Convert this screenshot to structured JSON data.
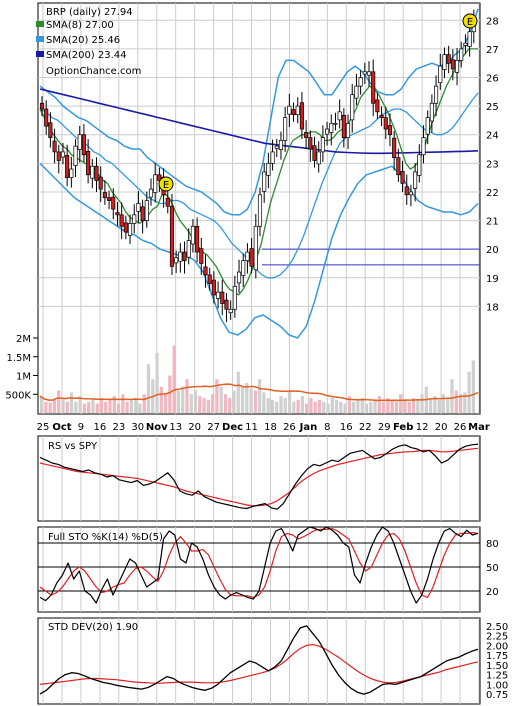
{
  "chart_data": [
    {
      "type": "candlestick",
      "panel": "price",
      "title": "BRP (daily) 27.94",
      "watermark": "OptionChance.com",
      "legend": [
        {
          "label": "SMA(8) 27.00",
          "color": "#2e8b2e"
        },
        {
          "label": "SMA(20) 25.46",
          "color": "#3399dd"
        },
        {
          "label": "SMA(200) 23.44",
          "color": "#1a1aa6"
        }
      ],
      "legend_placement": "top-left",
      "ylim": [
        17,
        28.5
      ],
      "y_ticks": [
        "18",
        "19",
        "20",
        "21",
        "22",
        "23",
        "24",
        "25",
        "26",
        "27",
        "28"
      ],
      "x_ticks": [
        "25",
        "Oct",
        "9",
        "16",
        "23",
        "30",
        "Nov",
        "13",
        "20",
        "27",
        "Dec",
        "11",
        "18",
        "26",
        "Jan",
        "8",
        "16",
        "22",
        "29",
        "Feb",
        "12",
        "20",
        "26",
        "Mar"
      ],
      "x_ticks_bold": [
        "Oct",
        "Nov",
        "Dec",
        "Jan",
        "Feb",
        "Mar"
      ],
      "close": [
        24.9,
        24.3,
        23.9,
        23.4,
        23.1,
        23.4,
        22.5,
        22.8,
        23.6,
        24.0,
        23.3,
        22.6,
        22.9,
        22.4,
        22.1,
        21.8,
        21.7,
        21.4,
        21.2,
        20.8,
        20.6,
        20.9,
        21.2,
        21.6,
        21.0,
        21.7,
        22.1,
        22.6,
        22.4,
        21.9,
        21.5,
        19.4,
        19.7,
        19.9,
        19.6,
        20.3,
        20.8,
        19.9,
        19.5,
        19.1,
        18.8,
        18.4,
        18.5,
        18.1,
        17.9,
        17.9,
        18.7,
        19.2,
        19.6,
        19.9,
        19.4,
        20.8,
        21.9,
        22.7,
        23.0,
        23.4,
        23.6,
        23.8,
        24.6,
        25.0,
        24.7,
        25.0,
        24.2,
        23.9,
        23.5,
        23.1,
        23.4,
        23.9,
        24.2,
        24.4,
        24.4,
        24.8,
        23.9,
        24.4,
        25.4,
        25.7,
        26.0,
        26.2,
        26.2,
        25.1,
        24.8,
        24.6,
        24.2,
        24.0,
        23.2,
        22.6,
        22.3,
        21.9,
        22.0,
        22.7,
        23.3,
        23.9,
        24.6,
        25.1,
        25.7,
        26.4,
        26.8,
        26.5,
        26.3,
        26.6,
        27.0,
        27.2,
        27.6,
        27.94
      ],
      "sma8": [
        24.9,
        24.6,
        24.3,
        24.0,
        23.8,
        23.6,
        23.5,
        23.3,
        23.2,
        23.1,
        23.0,
        22.9,
        22.8,
        22.6,
        22.4,
        22.3,
        22.0,
        21.8,
        21.6,
        21.3,
        21.1,
        21.0,
        20.9,
        21.0,
        21.2,
        21.4,
        21.5,
        21.9,
        21.9,
        21.7,
        21.3,
        21.0,
        20.8,
        20.6,
        20.3,
        20.1,
        19.9,
        19.8,
        19.6,
        19.4,
        19.1,
        18.8,
        18.6,
        18.5,
        18.4,
        18.6,
        18.9,
        19.3,
        19.7,
        20.2,
        20.9,
        21.6,
        22.1,
        22.6,
        23.1,
        23.5,
        23.8,
        23.9,
        24.0,
        24.0,
        24.1,
        24.1,
        24.0,
        23.8,
        23.8,
        23.9,
        24.1,
        24.2,
        24.3,
        24.6,
        24.9,
        25.3,
        25.5,
        25.7,
        25.6,
        25.4,
        25.1,
        24.8,
        24.4,
        24.0,
        23.5,
        23.0,
        22.8,
        22.9,
        23.1,
        23.5,
        24.0,
        24.5,
        24.9,
        25.3,
        25.7,
        26.0,
        26.3,
        26.6,
        26.8,
        27.0,
        27.0,
        27.0
      ],
      "sma20": [
        24.9,
        24.8,
        24.6,
        24.5,
        24.3,
        24.1,
        23.9,
        23.8,
        23.6,
        23.4,
        23.3,
        23.1,
        23.0,
        22.8,
        22.6,
        22.4,
        22.2,
        22.0,
        21.8,
        21.7,
        21.6,
        21.6,
        21.7,
        21.7,
        21.6,
        21.4,
        21.3,
        21.2,
        21.1,
        21.0,
        20.8,
        20.5,
        20.2,
        20.0,
        19.8,
        19.5,
        19.3,
        19.1,
        19.0,
        19.0,
        19.1,
        19.3,
        19.6,
        20.0,
        20.5,
        21.1,
        21.7,
        22.3,
        22.8,
        23.3,
        23.7,
        23.9,
        24.0,
        24.1,
        24.2,
        24.3,
        24.5,
        24.7,
        24.8,
        24.9,
        24.9,
        24.8,
        24.6,
        24.4,
        24.2,
        24.1,
        24.0,
        24.0,
        24.1,
        24.3,
        24.6,
        24.9,
        25.2,
        25.46
      ],
      "sma200": [
        25.6,
        25.5,
        25.4,
        25.3,
        25.2,
        25.1,
        25.0,
        24.9,
        24.8,
        24.7,
        24.6,
        24.5,
        24.4,
        24.3,
        24.2,
        24.1,
        24.0,
        23.9,
        23.8,
        23.7,
        23.65,
        23.6,
        23.55,
        23.5,
        23.45,
        23.4,
        23.38,
        23.36,
        23.35,
        23.35,
        23.36,
        23.37,
        23.38,
        23.39,
        23.4,
        23.41,
        23.42,
        23.44
      ],
      "bb_upper": [
        25.7,
        25.5,
        25.3,
        25.0,
        24.8,
        24.6,
        24.5,
        24.3,
        24.1,
        23.9,
        23.8,
        23.6,
        23.5,
        23.5,
        23.2,
        23.0,
        22.8,
        22.6,
        22.4,
        22.2,
        22.1,
        22.0,
        21.8,
        21.6,
        21.3,
        21.2,
        21.2,
        21.4,
        22.0,
        23.0,
        24.5,
        26.0,
        26.6,
        26.6,
        26.4,
        26.2,
        25.8,
        25.4,
        25.4,
        25.8,
        26.2,
        26.4,
        26.2,
        25.8,
        25.5,
        25.4,
        25.4,
        25.6,
        26.0,
        26.3,
        26.4,
        26.5,
        26.4,
        26.5,
        26.8,
        27.0,
        27.6,
        28.4
      ],
      "bb_lower": [
        23.0,
        22.7,
        22.4,
        22.1,
        21.8,
        21.6,
        21.4,
        21.2,
        21.0,
        20.8,
        20.6,
        20.5,
        20.3,
        20.2,
        20.0,
        19.9,
        19.8,
        19.8,
        19.6,
        19.2,
        18.4,
        17.6,
        17.1,
        17.0,
        17.2,
        17.6,
        17.7,
        17.5,
        17.3,
        17.0,
        16.9,
        17.3,
        18.2,
        19.3,
        20.4,
        21.2,
        21.8,
        22.3,
        22.6,
        22.7,
        22.8,
        22.9,
        22.6,
        22.1,
        21.7,
        21.5,
        21.4,
        21.3,
        21.3,
        21.2,
        21.3,
        21.6
      ],
      "horizontal_lines": [
        20.0,
        19.45
      ]
    },
    {
      "type": "bar",
      "panel": "volume",
      "y_ticks": [
        "2M",
        "1.5M",
        "1M",
        "500K"
      ],
      "ylim": [
        0,
        2400000
      ],
      "values": [
        450000,
        300000,
        280000,
        350000,
        600000,
        400000,
        300000,
        550000,
        300000,
        450000,
        250000,
        300000,
        350000,
        250000,
        400000,
        300000,
        350000,
        450000,
        250000,
        500000,
        300000,
        350000,
        400000,
        250000,
        500000,
        1300000,
        900000,
        1600000,
        700000,
        500000,
        1000000,
        1800000,
        600000,
        700000,
        900000,
        500000,
        600000,
        450000,
        400000,
        350000,
        500000,
        900000,
        700000,
        500000,
        400000,
        600000,
        1100000,
        700000,
        800000,
        650000,
        600000,
        900000,
        550000,
        400000,
        350000,
        300000,
        450000,
        400000,
        600000,
        300000,
        350000,
        450000,
        250000,
        400000,
        300000,
        350000,
        300000,
        250000,
        400000,
        350000,
        300000,
        250000,
        450000,
        300000,
        350000,
        400000,
        250000,
        300000,
        350000,
        450000,
        300000,
        400000,
        350000,
        300000,
        500000,
        350000,
        300000,
        400000,
        350000,
        500000,
        700000,
        400000,
        450000,
        350000,
        500000,
        400000,
        900000,
        600000,
        500000,
        550000,
        1100000,
        1400000
      ],
      "avg_color": "#e06020"
    },
    {
      "type": "line",
      "panel": "rs",
      "label": "RS vs SPY",
      "line": [
        0.78,
        0.74,
        0.7,
        0.68,
        0.64,
        0.62,
        0.6,
        0.58,
        0.6,
        0.56,
        0.54,
        0.5,
        0.52,
        0.46,
        0.44,
        0.42,
        0.45,
        0.38,
        0.4,
        0.44,
        0.5,
        0.56,
        0.46,
        0.3,
        0.26,
        0.24,
        0.3,
        0.22,
        0.18,
        0.14,
        0.12,
        0.1,
        0.08,
        0.06,
        0.05,
        0.08,
        0.1,
        0.12,
        0.06,
        0.04,
        0.12,
        0.26,
        0.4,
        0.52,
        0.62,
        0.68,
        0.66,
        0.7,
        0.74,
        0.72,
        0.78,
        0.84,
        0.86,
        0.88,
        0.82,
        0.76,
        0.78,
        0.84,
        0.9,
        0.94,
        0.96,
        0.92,
        0.9,
        0.86,
        0.88,
        0.8,
        0.7,
        0.74,
        0.82,
        0.9,
        0.94,
        0.96,
        0.97
      ],
      "avg": [
        0.7,
        0.68,
        0.66,
        0.64,
        0.62,
        0.6,
        0.58,
        0.57,
        0.56,
        0.55,
        0.54,
        0.53,
        0.52,
        0.51,
        0.5,
        0.49,
        0.48,
        0.46,
        0.44,
        0.42,
        0.4,
        0.38,
        0.36,
        0.33,
        0.3,
        0.28,
        0.26,
        0.24,
        0.22,
        0.2,
        0.18,
        0.16,
        0.14,
        0.12,
        0.1,
        0.09,
        0.09,
        0.1,
        0.12,
        0.16,
        0.22,
        0.28,
        0.36,
        0.44,
        0.5,
        0.55,
        0.59,
        0.62,
        0.65,
        0.68,
        0.7,
        0.72,
        0.74,
        0.76,
        0.78,
        0.8,
        0.82,
        0.83,
        0.84,
        0.85,
        0.86,
        0.86,
        0.87,
        0.88,
        0.88,
        0.87,
        0.86,
        0.86,
        0.87,
        0.88,
        0.89,
        0.9,
        0.91
      ]
    },
    {
      "type": "line",
      "panel": "stochastic",
      "label": "Full STO %K(14) %D(5)",
      "y_ticks": [
        "80",
        "50",
        "20"
      ],
      "ylim": [
        0,
        100
      ],
      "k": [
        12,
        8,
        15,
        30,
        40,
        55,
        35,
        45,
        20,
        15,
        5,
        22,
        35,
        15,
        30,
        45,
        60,
        55,
        40,
        25,
        30,
        35,
        85,
        95,
        90,
        60,
        55,
        80,
        75,
        60,
        40,
        25,
        15,
        10,
        15,
        18,
        15,
        12,
        10,
        20,
        50,
        80,
        95,
        98,
        85,
        70,
        90,
        95,
        100,
        98,
        95,
        100,
        96,
        90,
        80,
        75,
        40,
        30,
        55,
        75,
        90,
        100,
        95,
        80,
        60,
        40,
        20,
        5,
        15,
        35,
        60,
        80,
        95,
        98,
        92,
        88,
        96,
        90,
        92
      ],
      "d": [
        25,
        20,
        15,
        18,
        25,
        35,
        45,
        50,
        45,
        35,
        25,
        18,
        20,
        25,
        28,
        30,
        40,
        48,
        50,
        45,
        38,
        32,
        45,
        65,
        80,
        88,
        80,
        70,
        70,
        72,
        65,
        50,
        35,
        22,
        15,
        14,
        14,
        14,
        12,
        15,
        25,
        45,
        70,
        88,
        92,
        90,
        85,
        88,
        92,
        96,
        97,
        97,
        98,
        95,
        90,
        85,
        70,
        55,
        45,
        50,
        65,
        80,
        90,
        92,
        85,
        70,
        50,
        30,
        15,
        12,
        25,
        45,
        65,
        80,
        90,
        92,
        92,
        93,
        92
      ]
    },
    {
      "type": "line",
      "panel": "stddev",
      "label": "STD DEV(20) 1.90",
      "y_ticks": [
        "2.50",
        "2.25",
        "2.00",
        "1.75",
        "1.50",
        "1.25",
        "1.00",
        "0.75"
      ],
      "ylim": [
        0.6,
        2.6
      ],
      "line": [
        0.75,
        0.85,
        1.0,
        1.15,
        1.25,
        1.3,
        1.28,
        1.22,
        1.15,
        1.1,
        1.05,
        1.02,
        0.98,
        0.95,
        0.92,
        0.9,
        0.88,
        0.92,
        1.0,
        1.1,
        1.2,
        1.15,
        1.05,
        0.98,
        0.92,
        0.88,
        0.85,
        0.9,
        1.0,
        1.15,
        1.3,
        1.4,
        1.5,
        1.6,
        1.55,
        1.45,
        1.35,
        1.45,
        1.6,
        1.9,
        2.2,
        2.45,
        2.5,
        2.3,
        2.1,
        1.8,
        1.5,
        1.25,
        1.05,
        0.9,
        0.8,
        0.75,
        0.8,
        0.9,
        1.0,
        1.02,
        1.0,
        1.05,
        1.1,
        1.15,
        1.2,
        1.3,
        1.4,
        1.5,
        1.6,
        1.65,
        1.7,
        1.78,
        1.85,
        1.9
      ],
      "avg": [
        1.0,
        1.02,
        1.04,
        1.06,
        1.08,
        1.1,
        1.12,
        1.14,
        1.15,
        1.15,
        1.14,
        1.13,
        1.12,
        1.1,
        1.08,
        1.06,
        1.05,
        1.04,
        1.03,
        1.03,
        1.04,
        1.05,
        1.06,
        1.06,
        1.06,
        1.05,
        1.04,
        1.04,
        1.05,
        1.07,
        1.1,
        1.14,
        1.18,
        1.22,
        1.26,
        1.3,
        1.35,
        1.42,
        1.52,
        1.65,
        1.8,
        1.92,
        2.0,
        2.02,
        1.98,
        1.9,
        1.8,
        1.7,
        1.58,
        1.46,
        1.34,
        1.24,
        1.16,
        1.1,
        1.06,
        1.04,
        1.05,
        1.08,
        1.12,
        1.16,
        1.2,
        1.24,
        1.28,
        1.32,
        1.38,
        1.42,
        1.46,
        1.5,
        1.54,
        1.58
      ],
      "colors": {
        "up": "#ffffff",
        "down": "#cc2222",
        "sma8": "#2e8b2e",
        "sma20": "#3399dd",
        "sma200": "#1a1aa6",
        "horiz": "#3333cc",
        "avg": "#e02020",
        "earnings": "#f0e000"
      }
    }
  ],
  "earnings_markers": [
    "E",
    "E"
  ]
}
